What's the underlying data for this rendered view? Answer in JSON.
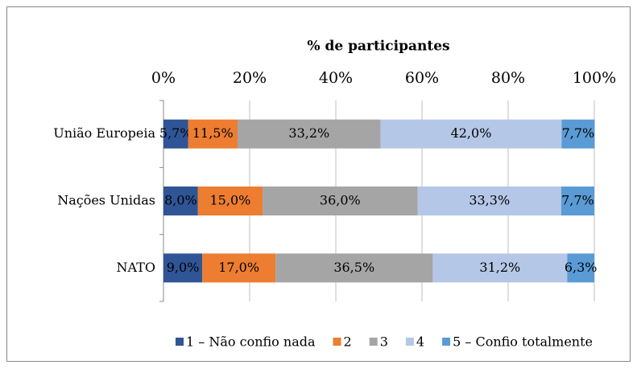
{
  "chart_data": {
    "type": "stacked_bar_horizontal",
    "title": "% de participantes",
    "categories": [
      "União Europeia",
      "Nações Unidas",
      "NATO"
    ],
    "xlim": [
      0,
      100
    ],
    "xticks": [
      {
        "value": 0,
        "label": "0%"
      },
      {
        "value": 20,
        "label": "20%"
      },
      {
        "value": 40,
        "label": "40%"
      },
      {
        "value": 60,
        "label": "60%"
      },
      {
        "value": 80,
        "label": "80%"
      },
      {
        "value": 100,
        "label": "100%"
      }
    ],
    "grid": true,
    "legend": "bottom",
    "series": [
      {
        "name": "1 – Não confio nada",
        "color": "#2f5597",
        "values": [
          5.7,
          8.0,
          9.0
        ],
        "value_labels": [
          "5,7%",
          "8,0%",
          "9,0%"
        ]
      },
      {
        "name": "2",
        "color": "#ed7d31",
        "values": [
          11.5,
          15.0,
          17.0
        ],
        "value_labels": [
          "11,5%",
          "15,0%",
          "17,0%"
        ]
      },
      {
        "name": "3",
        "color": "#a5a5a5",
        "values": [
          33.2,
          36.0,
          36.5
        ],
        "value_labels": [
          "33,2%",
          "36,0%",
          "36,5%"
        ]
      },
      {
        "name": "4",
        "color": "#b4c7e7",
        "values": [
          42.0,
          33.3,
          31.2
        ],
        "value_labels": [
          "42,0%",
          "33,3%",
          "31,2%"
        ]
      },
      {
        "name": "5 – Confio totalmente",
        "color": "#5b9bd5",
        "values": [
          7.7,
          7.7,
          6.3
        ],
        "value_labels": [
          "7,7%",
          "7,7%",
          "6,3%"
        ]
      }
    ]
  }
}
